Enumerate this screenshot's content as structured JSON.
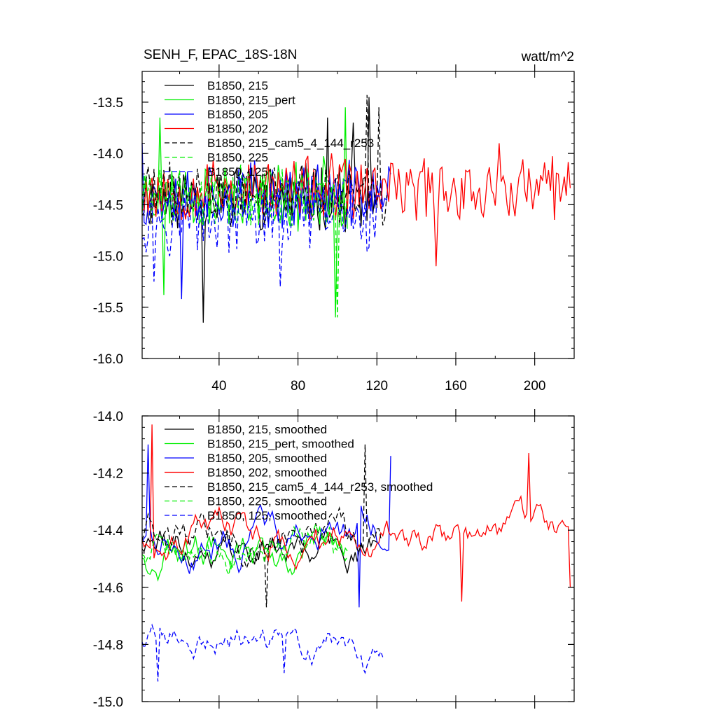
{
  "chart_data": [
    {
      "type": "line",
      "title": "SENH_F, EPAC_18S-18N",
      "units": "watt/m^2",
      "xlim": [
        1,
        220
      ],
      "ylim": [
        -16.0,
        -13.2
      ],
      "xticks": [
        40,
        80,
        120,
        160,
        200
      ],
      "xtick_labels": [
        "40",
        "80",
        "120",
        "160",
        "200"
      ],
      "yticks": [
        -16.0,
        -15.5,
        -15.0,
        -14.5,
        -14.0,
        -13.5
      ],
      "ytick_labels": [
        "-16.0",
        "-15.5",
        "-15.0",
        "-14.5",
        "-14.0",
        "-13.5"
      ],
      "legend_position": "top-left",
      "series": [
        {
          "name": "B1850, 215",
          "color": "#000000",
          "dash": "solid",
          "n": 120,
          "base": -14.42,
          "amp": 0.28,
          "seed": 11,
          "spikes": [
            [
              32,
              -15.65
            ],
            [
              116,
              -13.45
            ],
            [
              95,
              -13.65
            ],
            [
              122,
              -13.55
            ],
            [
              108,
              -13.7
            ]
          ]
        },
        {
          "name": "B1850, 215_pert",
          "color": "#00ee00",
          "dash": "solid",
          "n": 105,
          "base": -14.4,
          "amp": 0.3,
          "seed": 23,
          "spikes": [
            [
              99,
              -15.6
            ],
            [
              104,
              -13.55
            ],
            [
              10,
              -13.65
            ],
            [
              12,
              -15.38
            ]
          ]
        },
        {
          "name": "B1850, 205",
          "color": "#0000ff",
          "dash": "solid",
          "n": 127,
          "base": -14.4,
          "amp": 0.28,
          "seed": 37,
          "spikes": [
            [
              21,
              -15.42
            ],
            [
              1,
              -13.9
            ]
          ]
        },
        {
          "name": "B1850, 202",
          "color": "#ff0000",
          "dash": "solid",
          "n": 218,
          "base": -14.35,
          "amp": 0.28,
          "seed": 53,
          "spikes": [
            [
              150,
              -15.1
            ],
            [
              182,
              -13.9
            ]
          ]
        },
        {
          "name": "B1850, 215_cam5_4_144_r253",
          "color": "#000000",
          "dash": "dashed",
          "n": 125,
          "base": -14.4,
          "amp": 0.27,
          "seed": 71,
          "spikes": [
            [
              115,
              -13.43
            ],
            [
              121,
              -13.55
            ]
          ]
        },
        {
          "name": "B1850, 225",
          "color": "#00ee00",
          "dash": "dashed",
          "n": 105,
          "base": -14.42,
          "amp": 0.27,
          "seed": 89,
          "spikes": [
            [
              100,
              -15.6
            ]
          ]
        },
        {
          "name": "B1850, 125",
          "color": "#0000ff",
          "dash": "dashed",
          "n": 123,
          "base": -14.62,
          "amp": 0.3,
          "seed": 97,
          "spikes": [
            [
              7,
              -15.25
            ],
            [
              71,
              -15.3
            ]
          ]
        }
      ]
    },
    {
      "type": "line",
      "title": "",
      "xlim": [
        1,
        220
      ],
      "ylim": [
        -15.0,
        -14.0
      ],
      "xticks": [
        40,
        80,
        120,
        160,
        200
      ],
      "yticks": [
        -15.0,
        -14.8,
        -14.6,
        -14.4,
        -14.2,
        -14.0
      ],
      "ytick_labels": [
        "-15.0",
        "-14.8",
        "-14.6",
        "-14.4",
        "-14.2",
        "-14.0"
      ],
      "legend_position": "top-left",
      "series": [
        {
          "name": "B1850, 215, smoothed",
          "color": "#000000",
          "dash": "solid",
          "n": 120,
          "base": -14.45,
          "amp": 0.08,
          "seed": 111,
          "spikes": []
        },
        {
          "name": "B1850, 215_pert, smoothed",
          "color": "#00ee00",
          "dash": "solid",
          "n": 105,
          "base": -14.48,
          "amp": 0.09,
          "seed": 123,
          "spikes": []
        },
        {
          "name": "B1850, 205, smoothed",
          "color": "#0000ff",
          "dash": "solid",
          "n": 127,
          "base": -14.43,
          "amp": 0.09,
          "seed": 137,
          "spikes": [
            [
              4,
              -14.1
            ],
            [
              111,
              -14.67
            ],
            [
              127,
              -14.14
            ]
          ]
        },
        {
          "name": "B1850, 202, smoothed",
          "color": "#ff0000",
          "dash": "solid",
          "n": 218,
          "base": -14.42,
          "amp": 0.08,
          "seed": 153,
          "spikes": [
            [
              6,
              -14.03
            ],
            [
              163,
              -14.65
            ],
            [
              197,
              -14.13
            ],
            [
              218,
              -14.6
            ]
          ]
        },
        {
          "name": "B1850, 215_cam5_4_144_r253, smoothed",
          "color": "#000000",
          "dash": "dashed",
          "n": 122,
          "base": -14.42,
          "amp": 0.09,
          "seed": 171,
          "spikes": [
            [
              64,
              -14.67
            ],
            [
              114,
              -14.1
            ]
          ]
        },
        {
          "name": "B1850, 225, smoothed",
          "color": "#00ee00",
          "dash": "dashed",
          "n": 105,
          "base": -14.47,
          "amp": 0.09,
          "seed": 189,
          "spikes": []
        },
        {
          "name": "B1850, 125, smoothed",
          "color": "#0000ff",
          "dash": "dashed",
          "n": 123,
          "base": -14.78,
          "amp": 0.07,
          "seed": 197,
          "spikes": [
            [
              9,
              -14.93
            ],
            [
              73,
              -14.9
            ],
            [
              112,
              -14.84
            ]
          ]
        }
      ]
    }
  ]
}
